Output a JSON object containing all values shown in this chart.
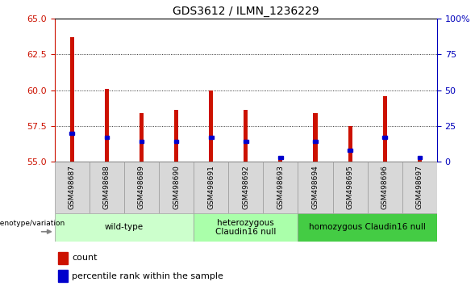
{
  "title": "GDS3612 / ILMN_1236229",
  "samples": [
    "GSM498687",
    "GSM498688",
    "GSM498689",
    "GSM498690",
    "GSM498691",
    "GSM498692",
    "GSM498693",
    "GSM498694",
    "GSM498695",
    "GSM498696",
    "GSM498697"
  ],
  "counts": [
    63.7,
    60.1,
    58.4,
    58.6,
    60.0,
    58.6,
    55.1,
    58.4,
    57.5,
    59.6,
    55.1
  ],
  "percentile_ranks": [
    20,
    17,
    14,
    14,
    17,
    14,
    3,
    14,
    8,
    17,
    3
  ],
  "ymin": 55,
  "ymax": 65,
  "yticks": [
    55,
    57.5,
    60,
    62.5,
    65
  ],
  "right_yticks": [
    0,
    25,
    50,
    75,
    100
  ],
  "groups": [
    {
      "label": "wild-type",
      "start": 0,
      "end": 3,
      "color": "#ccffcc"
    },
    {
      "label": "heterozygous\nClaudin16 null",
      "start": 4,
      "end": 6,
      "color": "#aaffaa"
    },
    {
      "label": "homozygous Claudin16 null",
      "start": 7,
      "end": 10,
      "color": "#44cc44"
    }
  ],
  "bar_color": "#cc1100",
  "percentile_color": "#0000cc",
  "bar_width": 0.12,
  "left_tick_color": "#cc1100",
  "right_tick_color": "#0000bb"
}
